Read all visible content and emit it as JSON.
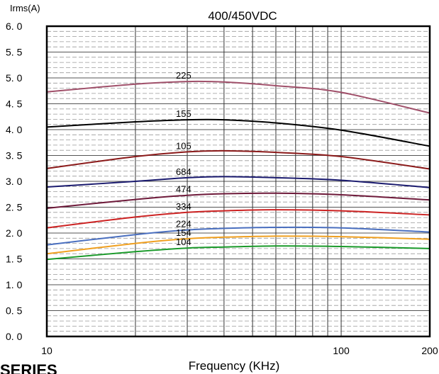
{
  "chart_data": {
    "type": "line",
    "title": "400/450VDC",
    "ylabel": "Irms(A)",
    "xlabel": "Frequency (KHz)",
    "x_scale": "log",
    "xlim": [
      10,
      200
    ],
    "ylim": [
      0,
      6.0
    ],
    "x_ticks": [
      {
        "value": 10,
        "label": "10"
      },
      {
        "value": 100,
        "label": "100"
      },
      {
        "value": 200,
        "label": "200"
      }
    ],
    "y_ticks": [
      {
        "value": 0,
        "label": "0. 0"
      },
      {
        "value": 0.5,
        "label": "0. 5"
      },
      {
        "value": 1.0,
        "label": "1. 0"
      },
      {
        "value": 1.5,
        "label": "1. 5"
      },
      {
        "value": 2.0,
        "label": "2. 0"
      },
      {
        "value": 2.5,
        "label": "2. 5"
      },
      {
        "value": 3.0,
        "label": "3. 0"
      },
      {
        "value": 3.5,
        "label": "3. 5"
      },
      {
        "value": 4.0,
        "label": "4. 0"
      },
      {
        "value": 4.5,
        "label": "4. 5"
      },
      {
        "value": 5.0,
        "label": "5. 0"
      },
      {
        "value": 5.5,
        "label": "5. 5"
      },
      {
        "value": 6.0,
        "label": "6. 0"
      }
    ],
    "grid": true,
    "series": [
      {
        "name": "225",
        "color": "#a0506a",
        "label_at": 30,
        "x": [
          10,
          20,
          30,
          40,
          60,
          100,
          200
        ],
        "y": [
          4.73,
          4.88,
          4.93,
          4.92,
          4.85,
          4.72,
          4.32
        ]
      },
      {
        "name": "155",
        "color": "#000000",
        "label_at": 30,
        "x": [
          10,
          20,
          30,
          40,
          60,
          100,
          200
        ],
        "y": [
          4.05,
          4.15,
          4.19,
          4.19,
          4.13,
          3.99,
          3.68
        ]
      },
      {
        "name": "105",
        "color": "#8b1a1a",
        "label_at": 30,
        "x": [
          10,
          20,
          30,
          40,
          60,
          100,
          200
        ],
        "y": [
          3.25,
          3.48,
          3.57,
          3.59,
          3.56,
          3.48,
          3.24
        ]
      },
      {
        "name": "684",
        "color": "#1a1a6e",
        "label_at": 30,
        "x": [
          10,
          20,
          30,
          40,
          60,
          100,
          200
        ],
        "y": [
          2.89,
          3.0,
          3.07,
          3.09,
          3.07,
          3.02,
          2.88
        ]
      },
      {
        "name": "474",
        "color": "#6e1a3a",
        "label_at": 30,
        "x": [
          10,
          20,
          30,
          40,
          60,
          100,
          200
        ],
        "y": [
          2.48,
          2.65,
          2.73,
          2.76,
          2.77,
          2.74,
          2.64
        ]
      },
      {
        "name": "334",
        "color": "#cc2222",
        "label_at": 30,
        "x": [
          10,
          20,
          30,
          40,
          60,
          100,
          200
        ],
        "y": [
          2.1,
          2.31,
          2.4,
          2.43,
          2.45,
          2.43,
          2.35
        ]
      },
      {
        "name": "224",
        "color": "#4a6fbf",
        "label_at": 30,
        "x": [
          10,
          20,
          30,
          40,
          60,
          100,
          200
        ],
        "y": [
          1.77,
          1.97,
          2.06,
          2.09,
          2.11,
          2.1,
          2.02
        ]
      },
      {
        "name": "154",
        "color": "#f0a020",
        "label_at": 30,
        "x": [
          10,
          20,
          30,
          40,
          60,
          100,
          200
        ],
        "y": [
          1.6,
          1.8,
          1.89,
          1.92,
          1.94,
          1.93,
          1.88
        ]
      },
      {
        "name": "104",
        "color": "#1a9a2a",
        "label_at": 30,
        "x": [
          10,
          20,
          30,
          40,
          60,
          100,
          200
        ],
        "y": [
          1.49,
          1.64,
          1.71,
          1.73,
          1.75,
          1.74,
          1.7
        ]
      }
    ]
  },
  "footer_text": "SERIES"
}
